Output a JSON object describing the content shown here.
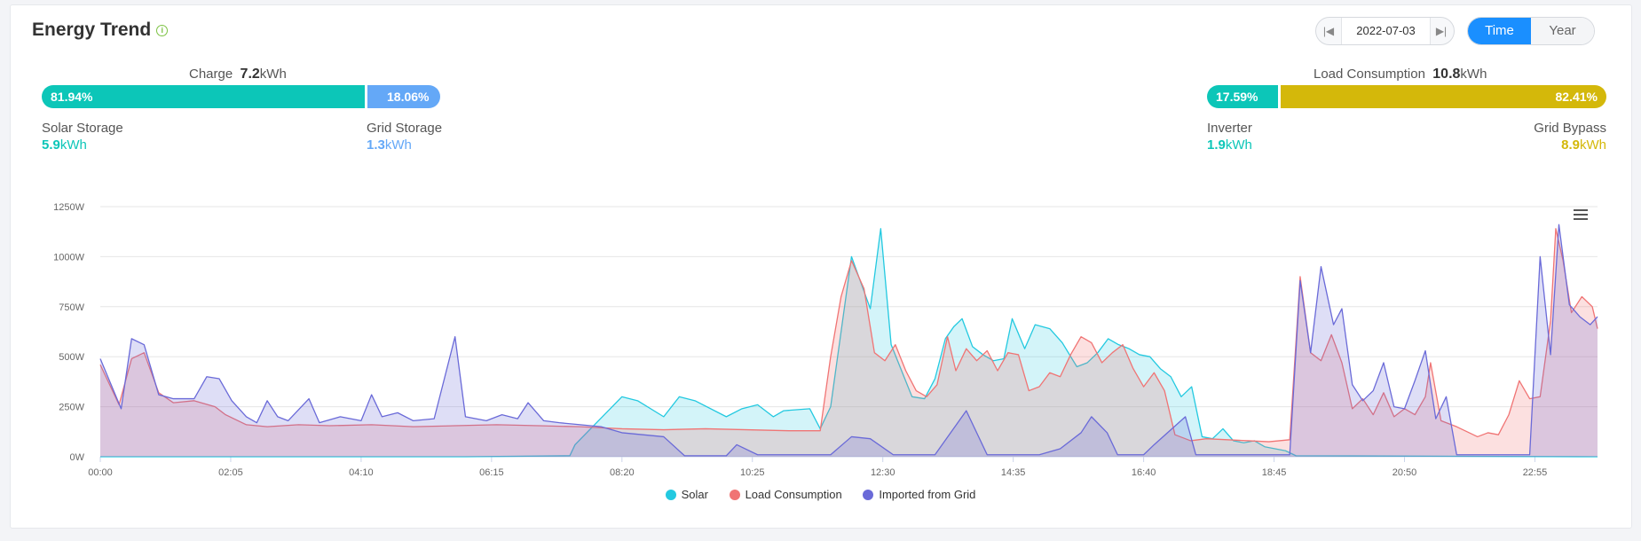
{
  "header": {
    "title": "Energy Trend",
    "info_icon": "info-icon"
  },
  "date_nav": {
    "date": "2022-07-03",
    "prev_icon": "skip-previous-icon",
    "next_icon": "skip-next-icon"
  },
  "view_toggle": {
    "time_label": "Time",
    "year_label": "Year",
    "active": "Time"
  },
  "charge": {
    "label": "Charge",
    "value": "7.2",
    "unit": "kWh",
    "solar": {
      "pct": "81.94%",
      "fraction": 0.8194,
      "label": "Solar Storage",
      "value": "5.9",
      "unit": "kWh",
      "color": "#0cc6b8"
    },
    "grid": {
      "pct": "18.06%",
      "fraction": 0.1806,
      "label": "Grid Storage",
      "value": "1.3",
      "unit": "kWh",
      "color": "#64a8f7"
    }
  },
  "load": {
    "label": "Load Consumption",
    "value": "10.8",
    "unit": "kWh",
    "inverter": {
      "pct": "17.59%",
      "fraction": 0.1759,
      "label": "Inverter",
      "value": "1.9",
      "unit": "kWh",
      "color": "#0cc6b8"
    },
    "bypass": {
      "pct": "82.41%",
      "fraction": 0.8241,
      "label": "Grid Bypass",
      "value": "8.9",
      "unit": "kWh",
      "color": "#d4b80a"
    }
  },
  "chart_data": {
    "type": "area",
    "ylim": [
      0,
      1250
    ],
    "yticks": [
      "0W",
      "250W",
      "500W",
      "750W",
      "1000W",
      "1250W"
    ],
    "xticks": [
      "00:00",
      "02:05",
      "04:10",
      "06:15",
      "08:20",
      "10:25",
      "12:30",
      "14:35",
      "16:40",
      "18:45",
      "20:50",
      "22:55"
    ],
    "xlim_minutes": [
      0,
      1435
    ],
    "grid": true,
    "legend_position": "bottom-center",
    "series": [
      {
        "name": "Solar",
        "color": "#23c9e0",
        "points": [
          [
            0,
            0
          ],
          [
            350,
            0
          ],
          [
            450,
            5
          ],
          [
            455,
            60
          ],
          [
            500,
            300
          ],
          [
            515,
            280
          ],
          [
            540,
            200
          ],
          [
            555,
            300
          ],
          [
            570,
            280
          ],
          [
            600,
            200
          ],
          [
            615,
            240
          ],
          [
            630,
            260
          ],
          [
            645,
            200
          ],
          [
            655,
            230
          ],
          [
            680,
            240
          ],
          [
            690,
            140
          ],
          [
            700,
            250
          ],
          [
            720,
            1000
          ],
          [
            738,
            740
          ],
          [
            748,
            1140
          ],
          [
            758,
            560
          ],
          [
            768,
            430
          ],
          [
            778,
            300
          ],
          [
            790,
            290
          ],
          [
            800,
            390
          ],
          [
            810,
            590
          ],
          [
            818,
            650
          ],
          [
            826,
            690
          ],
          [
            836,
            550
          ],
          [
            846,
            510
          ],
          [
            856,
            480
          ],
          [
            866,
            490
          ],
          [
            874,
            690
          ],
          [
            886,
            540
          ],
          [
            896,
            660
          ],
          [
            910,
            640
          ],
          [
            922,
            570
          ],
          [
            936,
            450
          ],
          [
            946,
            470
          ],
          [
            956,
            520
          ],
          [
            966,
            590
          ],
          [
            976,
            560
          ],
          [
            986,
            540
          ],
          [
            996,
            510
          ],
          [
            1006,
            500
          ],
          [
            1016,
            440
          ],
          [
            1026,
            400
          ],
          [
            1036,
            300
          ],
          [
            1046,
            350
          ],
          [
            1056,
            100
          ],
          [
            1066,
            90
          ],
          [
            1076,
            140
          ],
          [
            1086,
            80
          ],
          [
            1096,
            70
          ],
          [
            1106,
            80
          ],
          [
            1116,
            50
          ],
          [
            1126,
            40
          ],
          [
            1136,
            30
          ],
          [
            1146,
            5
          ],
          [
            1435,
            0
          ]
        ]
      },
      {
        "name": "Load Consumption",
        "color": "#f07474",
        "points": [
          [
            0,
            460
          ],
          [
            18,
            260
          ],
          [
            30,
            490
          ],
          [
            42,
            520
          ],
          [
            56,
            320
          ],
          [
            70,
            270
          ],
          [
            90,
            280
          ],
          [
            110,
            250
          ],
          [
            120,
            210
          ],
          [
            140,
            160
          ],
          [
            160,
            150
          ],
          [
            190,
            160
          ],
          [
            220,
            155
          ],
          [
            260,
            160
          ],
          [
            300,
            150
          ],
          [
            340,
            155
          ],
          [
            380,
            160
          ],
          [
            420,
            155
          ],
          [
            460,
            150
          ],
          [
            500,
            140
          ],
          [
            540,
            135
          ],
          [
            580,
            140
          ],
          [
            620,
            135
          ],
          [
            660,
            130
          ],
          [
            690,
            130
          ],
          [
            700,
            500
          ],
          [
            710,
            800
          ],
          [
            720,
            980
          ],
          [
            732,
            840
          ],
          [
            742,
            520
          ],
          [
            752,
            480
          ],
          [
            762,
            560
          ],
          [
            772,
            430
          ],
          [
            782,
            330
          ],
          [
            792,
            300
          ],
          [
            802,
            360
          ],
          [
            812,
            600
          ],
          [
            820,
            430
          ],
          [
            830,
            540
          ],
          [
            840,
            480
          ],
          [
            850,
            530
          ],
          [
            860,
            430
          ],
          [
            870,
            520
          ],
          [
            880,
            510
          ],
          [
            890,
            330
          ],
          [
            900,
            350
          ],
          [
            910,
            420
          ],
          [
            920,
            400
          ],
          [
            930,
            510
          ],
          [
            940,
            600
          ],
          [
            950,
            570
          ],
          [
            960,
            470
          ],
          [
            970,
            520
          ],
          [
            980,
            560
          ],
          [
            990,
            440
          ],
          [
            1000,
            350
          ],
          [
            1010,
            420
          ],
          [
            1020,
            330
          ],
          [
            1030,
            110
          ],
          [
            1045,
            80
          ],
          [
            1060,
            90
          ],
          [
            1080,
            85
          ],
          [
            1100,
            80
          ],
          [
            1120,
            75
          ],
          [
            1140,
            85
          ],
          [
            1150,
            900
          ],
          [
            1160,
            520
          ],
          [
            1170,
            480
          ],
          [
            1180,
            610
          ],
          [
            1190,
            470
          ],
          [
            1200,
            240
          ],
          [
            1210,
            290
          ],
          [
            1220,
            210
          ],
          [
            1230,
            320
          ],
          [
            1240,
            200
          ],
          [
            1250,
            240
          ],
          [
            1260,
            210
          ],
          [
            1270,
            300
          ],
          [
            1275,
            470
          ],
          [
            1285,
            180
          ],
          [
            1300,
            150
          ],
          [
            1320,
            100
          ],
          [
            1330,
            120
          ],
          [
            1340,
            110
          ],
          [
            1350,
            210
          ],
          [
            1360,
            380
          ],
          [
            1370,
            290
          ],
          [
            1380,
            300
          ],
          [
            1390,
            680
          ],
          [
            1395,
            1140
          ],
          [
            1402,
            980
          ],
          [
            1410,
            720
          ],
          [
            1420,
            800
          ],
          [
            1430,
            750
          ],
          [
            1435,
            640
          ]
        ]
      },
      {
        "name": "Imported from Grid",
        "color": "#6a6ad8",
        "points": [
          [
            0,
            490
          ],
          [
            20,
            240
          ],
          [
            30,
            590
          ],
          [
            42,
            560
          ],
          [
            56,
            310
          ],
          [
            70,
            290
          ],
          [
            90,
            290
          ],
          [
            102,
            400
          ],
          [
            114,
            390
          ],
          [
            126,
            280
          ],
          [
            140,
            200
          ],
          [
            150,
            170
          ],
          [
            160,
            280
          ],
          [
            170,
            200
          ],
          [
            180,
            180
          ],
          [
            200,
            290
          ],
          [
            210,
            170
          ],
          [
            230,
            200
          ],
          [
            250,
            180
          ],
          [
            260,
            310
          ],
          [
            270,
            200
          ],
          [
            285,
            220
          ],
          [
            300,
            180
          ],
          [
            320,
            190
          ],
          [
            340,
            600
          ],
          [
            350,
            200
          ],
          [
            370,
            180
          ],
          [
            385,
            210
          ],
          [
            400,
            190
          ],
          [
            410,
            270
          ],
          [
            425,
            180
          ],
          [
            440,
            170
          ],
          [
            460,
            160
          ],
          [
            480,
            150
          ],
          [
            500,
            120
          ],
          [
            520,
            110
          ],
          [
            540,
            100
          ],
          [
            560,
            5
          ],
          [
            600,
            5
          ],
          [
            610,
            60
          ],
          [
            630,
            10
          ],
          [
            700,
            10
          ],
          [
            720,
            100
          ],
          [
            738,
            90
          ],
          [
            760,
            10
          ],
          [
            800,
            10
          ],
          [
            830,
            230
          ],
          [
            850,
            10
          ],
          [
            900,
            10
          ],
          [
            920,
            40
          ],
          [
            940,
            120
          ],
          [
            950,
            200
          ],
          [
            965,
            120
          ],
          [
            975,
            10
          ],
          [
            1000,
            10
          ],
          [
            1010,
            60
          ],
          [
            1040,
            200
          ],
          [
            1050,
            10
          ],
          [
            1140,
            10
          ],
          [
            1150,
            880
          ],
          [
            1160,
            520
          ],
          [
            1170,
            950
          ],
          [
            1182,
            660
          ],
          [
            1190,
            740
          ],
          [
            1200,
            360
          ],
          [
            1210,
            280
          ],
          [
            1220,
            330
          ],
          [
            1230,
            470
          ],
          [
            1240,
            250
          ],
          [
            1250,
            240
          ],
          [
            1260,
            380
          ],
          [
            1270,
            530
          ],
          [
            1280,
            190
          ],
          [
            1290,
            300
          ],
          [
            1300,
            10
          ],
          [
            1370,
            10
          ],
          [
            1380,
            1000
          ],
          [
            1390,
            510
          ],
          [
            1398,
            1160
          ],
          [
            1408,
            760
          ],
          [
            1418,
            700
          ],
          [
            1428,
            660
          ],
          [
            1435,
            700
          ]
        ]
      }
    ]
  },
  "menu_icon": "hamburger-menu-icon"
}
